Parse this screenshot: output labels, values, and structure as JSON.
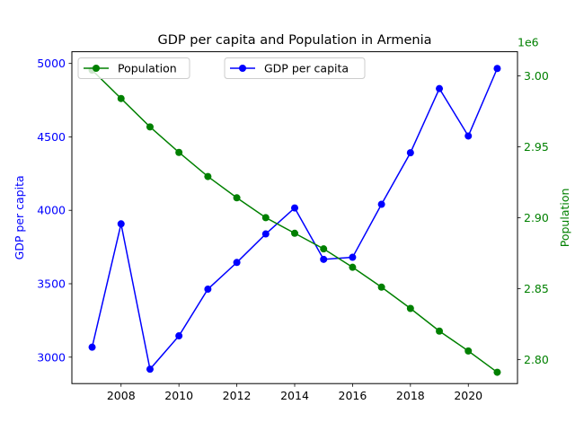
{
  "chart_data": {
    "type": "line",
    "title": "GDP per capita and Population in Armenia",
    "xlabel": "",
    "x": [
      2007,
      2008,
      2009,
      2010,
      2011,
      2012,
      2013,
      2014,
      2015,
      2016,
      2017,
      2018,
      2019,
      2020,
      2021
    ],
    "xlim": [
      2006.3,
      2021.7
    ],
    "xticks": [
      2008,
      2010,
      2012,
      2014,
      2016,
      2018,
      2020
    ],
    "left_axis": {
      "label": "GDP per capita",
      "color": "#0000ff",
      "ylim": [
        2820,
        5080
      ],
      "ticks": [
        3000,
        3500,
        4000,
        4500,
        5000
      ]
    },
    "right_axis": {
      "label": "Population",
      "color": "#008000",
      "ylim": [
        2783000,
        3017000
      ],
      "ticks": [
        2800000,
        2850000,
        2900000,
        2950000,
        3000000
      ],
      "tick_labels": [
        "2.80",
        "2.85",
        "2.90",
        "2.95",
        "3.00"
      ],
      "offset_text": "1e6"
    },
    "series": [
      {
        "name": "GDP per capita",
        "axis": "left",
        "color": "#0000ff",
        "marker": "circle",
        "values": [
          3068,
          3908,
          2918,
          3145,
          3463,
          3645,
          3839,
          4016,
          3666,
          3680,
          4041,
          4392,
          4829,
          4506,
          4966
        ]
      },
      {
        "name": "Population",
        "axis": "right",
        "color": "#008000",
        "marker": "circle",
        "values": [
          3004000,
          2984000,
          2964000,
          2946000,
          2929000,
          2914000,
          2900000,
          2889000,
          2878000,
          2865000,
          2851000,
          2836000,
          2820000,
          2806000,
          2791000
        ]
      }
    ],
    "legends": [
      {
        "series": "Population",
        "placement": "upper-left"
      },
      {
        "series": "GDP per capita",
        "placement": "upper-center"
      }
    ],
    "grid": false
  }
}
